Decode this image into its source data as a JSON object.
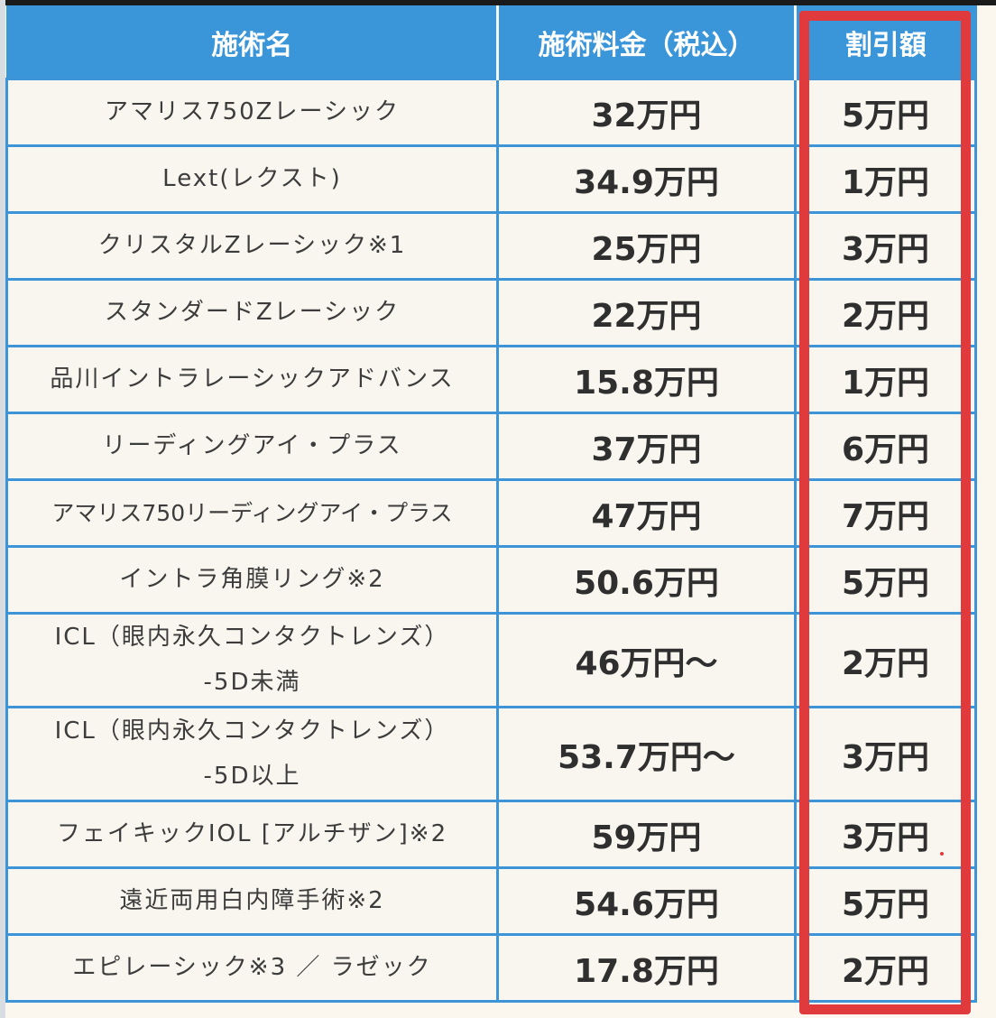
{
  "headers": {
    "name": "施術名",
    "price": "施術料金（税込）",
    "discount": "割引額"
  },
  "rows": [
    {
      "name": "アマリス750Zレーシック",
      "price": "32万円",
      "discount": "5万円"
    },
    {
      "name": "Lext(レクスト)",
      "price": "34.9万円",
      "discount": "1万円"
    },
    {
      "name": "クリスタルZレーシック※1",
      "price": "25万円",
      "discount": "3万円"
    },
    {
      "name": "スタンダードZレーシック",
      "price": "22万円",
      "discount": "2万円"
    },
    {
      "name": "品川イントラレーシックアドバンス",
      "price": "15.8万円",
      "discount": "1万円"
    },
    {
      "name": "リーディングアイ・プラス",
      "price": "37万円",
      "discount": "6万円"
    },
    {
      "name": "アマリス750リーディングアイ・プラス",
      "price": "47万円",
      "discount": "7万円"
    },
    {
      "name": "イントラ角膜リング※2",
      "price": "50.6万円",
      "discount": "5万円"
    },
    {
      "name": "ICL（眼内永久コンタクトレンズ）",
      "name2": "-5D未満",
      "price": "46万円〜",
      "discount": "2万円"
    },
    {
      "name": "ICL（眼内永久コンタクトレンズ）",
      "name2": "-5D以上",
      "price": "53.7万円〜",
      "discount": "3万円"
    },
    {
      "name": "フェイキックIOL [アルチザン]※2",
      "price": "59万円",
      "discount": "3万円"
    },
    {
      "name": "遠近両用白内障手術※2",
      "price": "54.6万円",
      "discount": "5万円"
    },
    {
      "name": "エピレーシック※3 ／ ラゼック",
      "price": "17.8万円",
      "discount": "2万円"
    }
  ],
  "colors": {
    "header_bg": "#3a95d9",
    "border": "#3d94d6",
    "highlight": "#e03a3c",
    "cell_bg": "#f8f6ee"
  }
}
